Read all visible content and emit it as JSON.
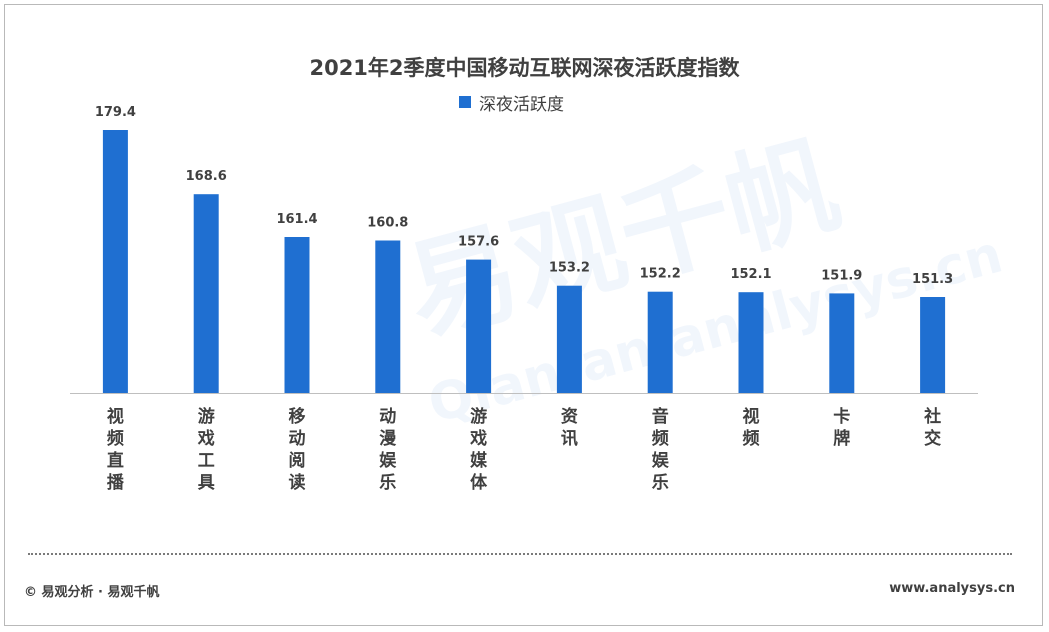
{
  "chart_data": {
    "type": "bar",
    "title": "2021年2季度中国移动互联网深夜活跃度指数",
    "legend": "深夜活跃度",
    "legend_position": "top-center",
    "categories": [
      "视频直播",
      "游戏工具",
      "移动阅读",
      "动漫娱乐",
      "游戏媒体",
      "资讯",
      "音频娱乐",
      "视频",
      "卡牌",
      "社交"
    ],
    "series": [
      {
        "name": "深夜活跃度",
        "values": [
          179.4,
          168.6,
          161.4,
          160.8,
          157.6,
          153.2,
          152.2,
          152.1,
          151.9,
          151.3
        ]
      }
    ],
    "bar_color": "#1f6fd1",
    "grid": false
  },
  "footer": {
    "left": "© 易观分析 · 易观千帆",
    "right": "www.analysys.cn"
  },
  "watermark": {
    "main": "易观千帆",
    "sub": "Qianfan.analysys.cn"
  }
}
